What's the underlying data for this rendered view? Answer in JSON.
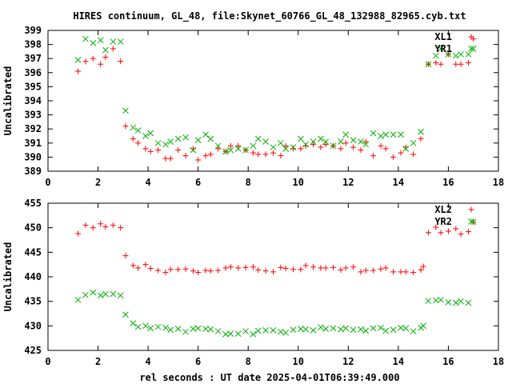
{
  "colors": {
    "red": "#ff0000",
    "green": "#00b000",
    "axis": "#000000"
  },
  "chart_data": [
    {
      "type": "scatter",
      "title": "HIRES continuum, GL_48, file:Skynet_60766_GL_48_132988_82965.cyb.txt",
      "xlabel": "",
      "ylabel": "Uncalibrated",
      "xlim": [
        0,
        18
      ],
      "ylim": [
        389,
        399
      ],
      "xticks": [
        0,
        2,
        4,
        6,
        8,
        10,
        12,
        14,
        16,
        18
      ],
      "yticks": [
        389,
        390,
        391,
        392,
        393,
        394,
        395,
        396,
        397,
        398,
        399
      ],
      "legend_position": "top-right",
      "grid": false,
      "series": [
        {
          "name": "XL1",
          "marker": "plus",
          "color": "#ff0000",
          "points": [
            [
              1.2,
              396.1
            ],
            [
              1.5,
              396.8
            ],
            [
              1.8,
              397.0
            ],
            [
              2.1,
              396.6
            ],
            [
              2.3,
              397.1
            ],
            [
              2.6,
              397.7
            ],
            [
              2.9,
              396.8
            ],
            [
              3.1,
              392.2
            ],
            [
              3.4,
              391.3
            ],
            [
              3.6,
              391.0
            ],
            [
              3.9,
              390.6
            ],
            [
              4.1,
              390.4
            ],
            [
              4.4,
              390.5
            ],
            [
              4.7,
              389.9
            ],
            [
              4.9,
              389.9
            ],
            [
              5.2,
              390.5
            ],
            [
              5.5,
              390.1
            ],
            [
              5.8,
              390.6
            ],
            [
              6.0,
              389.8
            ],
            [
              6.3,
              390.1
            ],
            [
              6.5,
              390.2
            ],
            [
              6.8,
              390.6
            ],
            [
              7.1,
              390.4
            ],
            [
              7.3,
              390.8
            ],
            [
              7.6,
              390.8
            ],
            [
              7.9,
              390.5
            ],
            [
              8.2,
              390.3
            ],
            [
              8.4,
              390.2
            ],
            [
              8.7,
              390.2
            ],
            [
              9.0,
              390.3
            ],
            [
              9.3,
              390.1
            ],
            [
              9.5,
              390.8
            ],
            [
              9.8,
              390.6
            ],
            [
              10.1,
              390.6
            ],
            [
              10.3,
              390.8
            ],
            [
              10.6,
              390.9
            ],
            [
              10.9,
              390.7
            ],
            [
              11.1,
              390.9
            ],
            [
              11.4,
              390.8
            ],
            [
              11.7,
              390.6
            ],
            [
              11.9,
              391.0
            ],
            [
              12.2,
              390.7
            ],
            [
              12.5,
              390.5
            ],
            [
              12.7,
              391.1
            ],
            [
              13.0,
              390.1
            ],
            [
              13.3,
              390.8
            ],
            [
              13.5,
              390.6
            ],
            [
              13.8,
              390.0
            ],
            [
              14.1,
              390.3
            ],
            [
              14.3,
              390.7
            ],
            [
              14.6,
              390.2
            ],
            [
              14.9,
              391.3
            ],
            [
              15.2,
              396.6
            ],
            [
              15.5,
              396.7
            ],
            [
              15.7,
              396.6
            ],
            [
              16.0,
              397.3
            ],
            [
              16.3,
              396.6
            ],
            [
              16.5,
              396.6
            ],
            [
              16.8,
              396.7
            ],
            [
              17.0,
              398.4
            ]
          ]
        },
        {
          "name": "YR1",
          "marker": "cross",
          "color": "#00b000",
          "points": [
            [
              1.2,
              396.9
            ],
            [
              1.5,
              398.4
            ],
            [
              1.8,
              398.1
            ],
            [
              2.1,
              398.3
            ],
            [
              2.3,
              397.6
            ],
            [
              2.6,
              398.2
            ],
            [
              2.9,
              398.2
            ],
            [
              3.1,
              393.3
            ],
            [
              3.4,
              392.1
            ],
            [
              3.6,
              391.9
            ],
            [
              3.9,
              391.5
            ],
            [
              4.1,
              391.7
            ],
            [
              4.4,
              391.0
            ],
            [
              4.7,
              390.9
            ],
            [
              4.9,
              391.1
            ],
            [
              5.2,
              391.3
            ],
            [
              5.5,
              391.4
            ],
            [
              5.8,
              390.5
            ],
            [
              6.0,
              391.2
            ],
            [
              6.3,
              391.6
            ],
            [
              6.5,
              391.3
            ],
            [
              6.8,
              390.8
            ],
            [
              7.1,
              390.4
            ],
            [
              7.3,
              390.5
            ],
            [
              7.6,
              390.6
            ],
            [
              7.9,
              390.5
            ],
            [
              8.2,
              390.8
            ],
            [
              8.4,
              391.3
            ],
            [
              8.7,
              391.1
            ],
            [
              9.0,
              390.7
            ],
            [
              9.3,
              391.0
            ],
            [
              9.5,
              390.6
            ],
            [
              9.8,
              390.7
            ],
            [
              10.1,
              391.3
            ],
            [
              10.3,
              390.9
            ],
            [
              10.6,
              391.1
            ],
            [
              10.9,
              391.3
            ],
            [
              11.1,
              391.1
            ],
            [
              11.4,
              390.8
            ],
            [
              11.7,
              391.1
            ],
            [
              11.9,
              391.6
            ],
            [
              12.2,
              391.2
            ],
            [
              12.5,
              391.1
            ],
            [
              12.7,
              390.9
            ],
            [
              13.0,
              391.7
            ],
            [
              13.3,
              391.5
            ],
            [
              13.5,
              391.6
            ],
            [
              13.8,
              391.6
            ],
            [
              14.1,
              391.6
            ],
            [
              14.3,
              390.6
            ],
            [
              14.6,
              391.0
            ],
            [
              14.9,
              391.8
            ],
            [
              15.2,
              396.6
            ],
            [
              15.5,
              397.2
            ],
            [
              15.7,
              397.7
            ],
            [
              16.0,
              397.3
            ],
            [
              16.3,
              397.2
            ],
            [
              16.5,
              397.3
            ],
            [
              16.8,
              397.3
            ],
            [
              17.0,
              397.7
            ]
          ]
        }
      ]
    },
    {
      "type": "scatter",
      "xlabel": "rel seconds : UT date 2025-04-01T06:39:49.000",
      "ylabel": "Uncalibrated",
      "xlim": [
        0,
        18
      ],
      "ylim": [
        425,
        455
      ],
      "xticks": [
        0,
        2,
        4,
        6,
        8,
        10,
        12,
        14,
        16,
        18
      ],
      "yticks": [
        425,
        430,
        435,
        440,
        445,
        450,
        455
      ],
      "legend_position": "top-right",
      "grid": false,
      "series": [
        {
          "name": "XL2",
          "marker": "plus",
          "color": "#ff0000",
          "points": [
            [
              1.2,
              448.8
            ],
            [
              1.5,
              450.5
            ],
            [
              1.8,
              450.0
            ],
            [
              2.1,
              450.8
            ],
            [
              2.3,
              450.2
            ],
            [
              2.6,
              450.5
            ],
            [
              2.9,
              450.0
            ],
            [
              3.1,
              444.3
            ],
            [
              3.4,
              442.3
            ],
            [
              3.6,
              441.8
            ],
            [
              3.9,
              442.5
            ],
            [
              4.1,
              441.7
            ],
            [
              4.4,
              441.3
            ],
            [
              4.7,
              440.9
            ],
            [
              4.9,
              441.5
            ],
            [
              5.2,
              441.5
            ],
            [
              5.5,
              441.6
            ],
            [
              5.8,
              441.2
            ],
            [
              6.0,
              440.9
            ],
            [
              6.3,
              441.3
            ],
            [
              6.5,
              441.2
            ],
            [
              6.8,
              441.3
            ],
            [
              7.1,
              441.8
            ],
            [
              7.3,
              442.0
            ],
            [
              7.6,
              441.8
            ],
            [
              7.9,
              441.9
            ],
            [
              8.2,
              442.0
            ],
            [
              8.4,
              441.4
            ],
            [
              8.7,
              441.2
            ],
            [
              9.0,
              441.0
            ],
            [
              9.3,
              441.9
            ],
            [
              9.5,
              441.7
            ],
            [
              9.8,
              441.5
            ],
            [
              10.1,
              441.5
            ],
            [
              10.3,
              442.3
            ],
            [
              10.6,
              442.0
            ],
            [
              10.9,
              441.8
            ],
            [
              11.1,
              441.8
            ],
            [
              11.4,
              441.9
            ],
            [
              11.7,
              441.4
            ],
            [
              11.9,
              441.8
            ],
            [
              12.2,
              442.0
            ],
            [
              12.5,
              441.0
            ],
            [
              12.7,
              441.3
            ],
            [
              13.0,
              441.3
            ],
            [
              13.3,
              441.6
            ],
            [
              13.5,
              441.8
            ],
            [
              13.8,
              441.0
            ],
            [
              14.1,
              441.0
            ],
            [
              14.3,
              441.0
            ],
            [
              14.6,
              440.9
            ],
            [
              14.9,
              441.4
            ],
            [
              15.0,
              442.1
            ],
            [
              15.2,
              449.0
            ],
            [
              15.5,
              450.1
            ],
            [
              15.7,
              449.0
            ],
            [
              16.0,
              449.3
            ],
            [
              16.3,
              449.8
            ],
            [
              16.5,
              448.7
            ],
            [
              16.8,
              449.2
            ],
            [
              17.0,
              451.1
            ]
          ]
        },
        {
          "name": "YR2",
          "marker": "cross",
          "color": "#00b000",
          "points": [
            [
              1.2,
              435.3
            ],
            [
              1.5,
              436.3
            ],
            [
              1.8,
              436.8
            ],
            [
              2.1,
              436.2
            ],
            [
              2.3,
              436.5
            ],
            [
              2.6,
              436.5
            ],
            [
              2.9,
              436.2
            ],
            [
              3.1,
              432.3
            ],
            [
              3.4,
              430.5
            ],
            [
              3.6,
              429.8
            ],
            [
              3.9,
              430.0
            ],
            [
              4.1,
              429.5
            ],
            [
              4.4,
              429.8
            ],
            [
              4.7,
              429.6
            ],
            [
              4.9,
              429.2
            ],
            [
              5.2,
              429.4
            ],
            [
              5.5,
              428.8
            ],
            [
              5.8,
              429.4
            ],
            [
              6.0,
              429.5
            ],
            [
              6.3,
              429.4
            ],
            [
              6.5,
              429.3
            ],
            [
              6.8,
              428.9
            ],
            [
              7.1,
              428.3
            ],
            [
              7.3,
              428.4
            ],
            [
              7.6,
              428.4
            ],
            [
              7.9,
              428.9
            ],
            [
              8.2,
              428.3
            ],
            [
              8.4,
              429.0
            ],
            [
              8.7,
              429.1
            ],
            [
              9.0,
              429.1
            ],
            [
              9.3,
              428.8
            ],
            [
              9.5,
              428.6
            ],
            [
              9.8,
              429.2
            ],
            [
              10.1,
              429.4
            ],
            [
              10.3,
              429.3
            ],
            [
              10.6,
              429.1
            ],
            [
              10.9,
              429.7
            ],
            [
              11.1,
              429.4
            ],
            [
              11.4,
              429.5
            ],
            [
              11.7,
              429.3
            ],
            [
              11.9,
              429.5
            ],
            [
              12.2,
              429.2
            ],
            [
              12.5,
              429.3
            ],
            [
              12.7,
              429.0
            ],
            [
              13.0,
              429.5
            ],
            [
              13.3,
              429.6
            ],
            [
              13.5,
              429.0
            ],
            [
              13.8,
              429.2
            ],
            [
              14.1,
              429.6
            ],
            [
              14.3,
              429.5
            ],
            [
              14.6,
              428.9
            ],
            [
              14.9,
              429.6
            ],
            [
              15.0,
              430.0
            ],
            [
              15.2,
              435.1
            ],
            [
              15.5,
              435.2
            ],
            [
              15.7,
              435.3
            ],
            [
              16.0,
              434.8
            ],
            [
              16.3,
              434.7
            ],
            [
              16.5,
              435.0
            ],
            [
              16.8,
              434.7
            ],
            [
              17.0,
              451.2
            ]
          ]
        }
      ]
    }
  ]
}
